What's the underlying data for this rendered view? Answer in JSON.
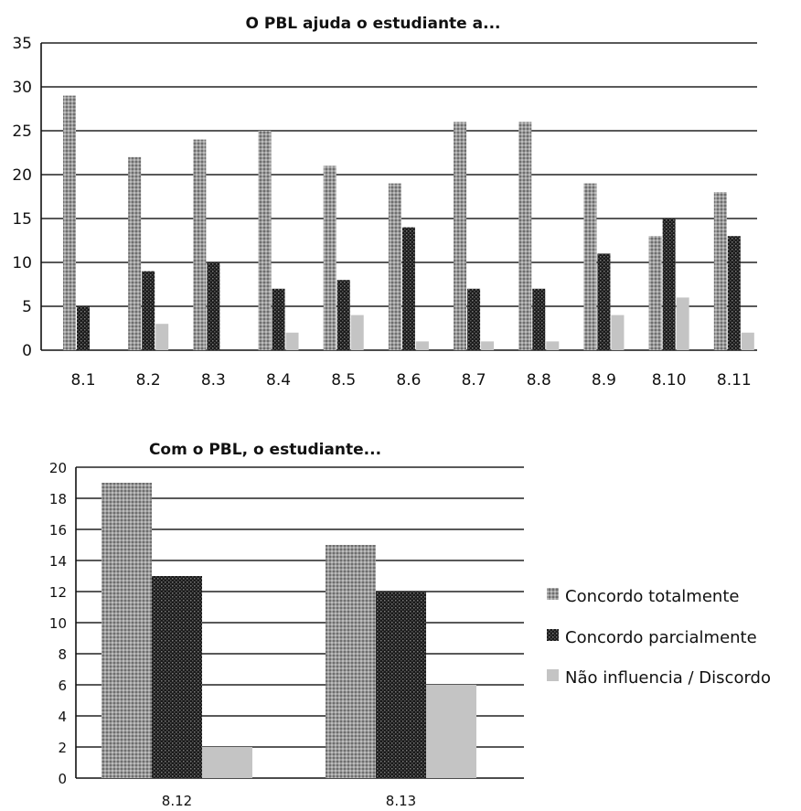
{
  "chart_data": [
    {
      "type": "bar",
      "title": "O PBL ajuda o estudiante a...",
      "categories": [
        "8.1",
        "8.2",
        "8.3",
        "8.4",
        "8.5",
        "8.6",
        "8.7",
        "8.8",
        "8.9",
        "8.10",
        "8.11"
      ],
      "series": [
        {
          "name": "Concordo totalmente",
          "values": [
            29,
            22,
            24,
            25,
            21,
            19,
            26,
            26,
            19,
            13,
            18
          ]
        },
        {
          "name": "Concordo parcialmente",
          "values": [
            5,
            9,
            10,
            7,
            8,
            14,
            7,
            7,
            11,
            15,
            13
          ]
        },
        {
          "name": "Não influencia / Discordo",
          "values": [
            0,
            3,
            0,
            2,
            4,
            1,
            1,
            1,
            4,
            6,
            2
          ]
        }
      ],
      "ylim": [
        0,
        35
      ],
      "yticks": [
        0,
        5,
        10,
        15,
        20,
        25,
        30,
        35
      ],
      "grid": true
    },
    {
      "type": "bar",
      "title": "Com o PBL, o estudiante...",
      "categories": [
        "8.12",
        "8.13"
      ],
      "series": [
        {
          "name": "Concordo totalmente",
          "values": [
            19,
            15
          ]
        },
        {
          "name": "Concordo parcialmente",
          "values": [
            13,
            12
          ]
        },
        {
          "name": "Não influencia / Discordo",
          "values": [
            2,
            6
          ]
        }
      ],
      "ylim": [
        0,
        20
      ],
      "yticks": [
        0,
        2,
        4,
        6,
        8,
        10,
        12,
        14,
        16,
        18,
        20
      ],
      "grid": true,
      "legend_position": "right"
    }
  ],
  "legend": {
    "items": [
      {
        "label": "Concordo totalmente",
        "pattern": "light-dotted"
      },
      {
        "label": "Concordo parcialmente",
        "pattern": "dark-dotted"
      },
      {
        "label": "Não influencia / Discordo",
        "pattern": "solid-light-gray"
      }
    ]
  },
  "colors": {
    "concordo_totalmente": "#8c8c8c",
    "concordo_parcialmente": "#1e1e1e",
    "nao_influencia": "#c4c4c4",
    "gridline": "#222222"
  }
}
